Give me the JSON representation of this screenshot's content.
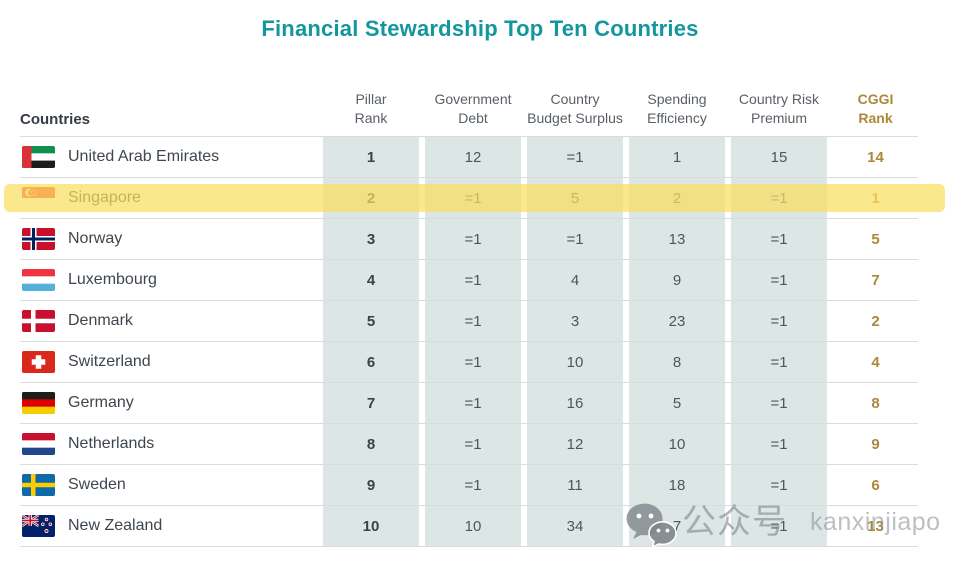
{
  "title": "Financial Stewardship Top Ten Countries",
  "table": {
    "country_header": "Countries",
    "columns": [
      {
        "id": "pillar_rank",
        "label": "Pillar\nRank",
        "emphasis": "pillar"
      },
      {
        "id": "government_debt",
        "label": "Government\nDebt",
        "emphasis": ""
      },
      {
        "id": "budget_surplus",
        "label": "Country\nBudget Surplus",
        "emphasis": ""
      },
      {
        "id": "spending_efficiency",
        "label": "Spending\nEfficiency",
        "emphasis": ""
      },
      {
        "id": "risk_premium",
        "label": "Country Risk\nPremium",
        "emphasis": ""
      },
      {
        "id": "cggi_rank",
        "label": "CGGI\nRank",
        "emphasis": "cggi"
      }
    ],
    "rows": [
      {
        "country": "United Arab Emirates",
        "flag": "ae",
        "highlighted": false,
        "pillar_rank": "1",
        "government_debt": "12",
        "budget_surplus": "=1",
        "spending_efficiency": "1",
        "risk_premium": "15",
        "cggi_rank": "14"
      },
      {
        "country": "Singapore",
        "flag": "sg",
        "highlighted": true,
        "pillar_rank": "2",
        "government_debt": "=1",
        "budget_surplus": "5",
        "spending_efficiency": "2",
        "risk_premium": "=1",
        "cggi_rank": "1"
      },
      {
        "country": "Norway",
        "flag": "no",
        "highlighted": false,
        "pillar_rank": "3",
        "government_debt": "=1",
        "budget_surplus": "=1",
        "spending_efficiency": "13",
        "risk_premium": "=1",
        "cggi_rank": "5"
      },
      {
        "country": "Luxembourg",
        "flag": "lu",
        "highlighted": false,
        "pillar_rank": "4",
        "government_debt": "=1",
        "budget_surplus": "4",
        "spending_efficiency": "9",
        "risk_premium": "=1",
        "cggi_rank": "7"
      },
      {
        "country": "Denmark",
        "flag": "dk",
        "highlighted": false,
        "pillar_rank": "5",
        "government_debt": "=1",
        "budget_surplus": "3",
        "spending_efficiency": "23",
        "risk_premium": "=1",
        "cggi_rank": "2"
      },
      {
        "country": "Switzerland",
        "flag": "ch",
        "highlighted": false,
        "pillar_rank": "6",
        "government_debt": "=1",
        "budget_surplus": "10",
        "spending_efficiency": "8",
        "risk_premium": "=1",
        "cggi_rank": "4"
      },
      {
        "country": "Germany",
        "flag": "de",
        "highlighted": false,
        "pillar_rank": "7",
        "government_debt": "=1",
        "budget_surplus": "16",
        "spending_efficiency": "5",
        "risk_premium": "=1",
        "cggi_rank": "8"
      },
      {
        "country": "Netherlands",
        "flag": "nl",
        "highlighted": false,
        "pillar_rank": "8",
        "government_debt": "=1",
        "budget_surplus": "12",
        "spending_efficiency": "10",
        "risk_premium": "=1",
        "cggi_rank": "9"
      },
      {
        "country": "Sweden",
        "flag": "se",
        "highlighted": false,
        "pillar_rank": "9",
        "government_debt": "=1",
        "budget_surplus": "11",
        "spending_efficiency": "18",
        "risk_premium": "=1",
        "cggi_rank": "6"
      },
      {
        "country": "New Zealand",
        "flag": "nz",
        "highlighted": false,
        "pillar_rank": "10",
        "government_debt": "10",
        "budget_surplus": "34",
        "spending_efficiency": "7",
        "risk_premium": "=1",
        "cggi_rank": "13"
      }
    ]
  },
  "watermark": {
    "icon": "wechat-icon",
    "cn_text": "公众号",
    "latin_text": "kanxinjiapo"
  },
  "colors": {
    "title_teal": "#14969f",
    "cggi_gold": "#ad873a",
    "column_band": "#dce7e5",
    "highlight_yellow": "rgba(250,222,95,0.72)",
    "separator": "#d9dedd",
    "text_dark": "#3e464e",
    "text_value": "#4d565e",
    "header_text": "#585f66"
  }
}
